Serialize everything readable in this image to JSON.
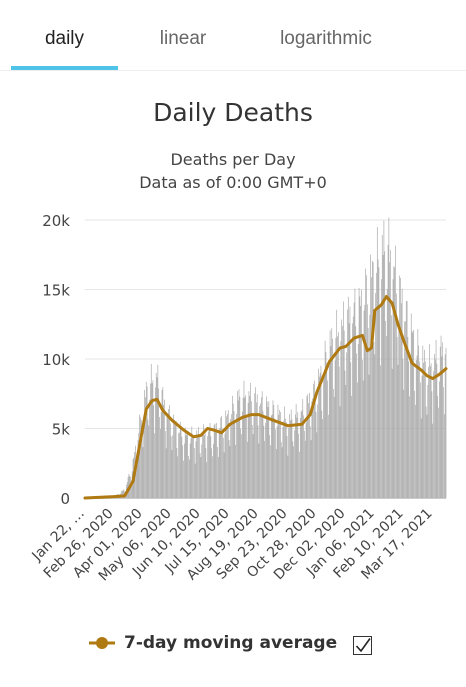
{
  "tabs": [
    "daily",
    "linear",
    "logarithmic"
  ],
  "active_tab": "daily",
  "chart_data": {
    "type": "bar",
    "title": "Daily Deaths",
    "subtitle_lines": [
      "Deaths per Day",
      "Data as of 0:00 GMT+0"
    ],
    "y_ticks": [
      "0",
      "5k",
      "10k",
      "15k",
      "20k"
    ],
    "ylim": [
      0,
      20000
    ],
    "x_tick_labels": [
      "Jan 22, …",
      "Feb 26, 2020",
      "Apr 01, 2020",
      "May 06, 2020",
      "Jun 10, 2020",
      "Jul 15, 2020",
      "Aug 19, 2020",
      "Sep 23, 2020",
      "Oct 28, 2020",
      "Dec 02, 2020",
      "Jan 06, 2021",
      "Feb 10, 2021",
      "Mar 17, 2021"
    ],
    "bar_color": "#a6a6a6",
    "line_color": "#b07a12",
    "daily_anchors": [
      [
        "Jan 22, 2020",
        20
      ],
      [
        "Feb 26, 2020",
        70
      ],
      [
        "Mar 10, 2020",
        600
      ],
      [
        "Mar 20, 2020",
        2400
      ],
      [
        "Mar 31, 2020",
        6000
      ],
      [
        "Apr 07, 2020",
        7800
      ],
      [
        "Apr 18, 2020",
        8300
      ],
      [
        "Apr 28, 2020",
        6200
      ],
      [
        "May 10, 2020",
        5000
      ],
      [
        "May 25, 2020",
        4200
      ],
      [
        "Jun 10, 2020",
        4400
      ],
      [
        "Jun 25, 2020",
        4600
      ],
      [
        "Jul 10, 2020",
        5400
      ],
      [
        "Jul 25, 2020",
        6800
      ],
      [
        "Aug 05, 2020",
        7100
      ],
      [
        "Aug 19, 2020",
        6700
      ],
      [
        "Sep 05, 2020",
        6000
      ],
      [
        "Sep 23, 2020",
        5300
      ],
      [
        "Oct 10, 2020",
        5900
      ],
      [
        "Oct 28, 2020",
        7600
      ],
      [
        "Nov 12, 2020",
        10400
      ],
      [
        "Dec 02, 2020",
        12200
      ],
      [
        "Dec 20, 2020",
        13200
      ],
      [
        "Jan 06, 2021",
        15800
      ],
      [
        "Jan 20, 2021",
        17400
      ],
      [
        "Jan 27, 2021",
        16200
      ],
      [
        "Feb 10, 2021",
        13000
      ],
      [
        "Feb 24, 2021",
        10500
      ],
      [
        "Mar 10, 2021",
        9000
      ],
      [
        "Mar 25, 2021",
        9800
      ],
      [
        "Apr 02, 2021",
        10500
      ]
    ],
    "series": [
      {
        "name": "7-day moving average",
        "points": [
          [
            "Jan 22, 2020",
            0
          ],
          [
            "Feb 26, 2020",
            100
          ],
          [
            "Mar 10, 2020",
            150
          ],
          [
            "Mar 20, 2020",
            1200
          ],
          [
            "Mar 28, 2020",
            3800
          ],
          [
            "Apr 05, 2020",
            6400
          ],
          [
            "Apr 12, 2020",
            7000
          ],
          [
            "Apr 18, 2020",
            7100
          ],
          [
            "Apr 25, 2020",
            6300
          ],
          [
            "May 06, 2020",
            5600
          ],
          [
            "May 20, 2020",
            4900
          ],
          [
            "Jun 01, 2020",
            4400
          ],
          [
            "Jun 10, 2020",
            4500
          ],
          [
            "Jun 18, 2020",
            5000
          ],
          [
            "Jun 25, 2020",
            4900
          ],
          [
            "Jul 05, 2020",
            4700
          ],
          [
            "Jul 15, 2020",
            5300
          ],
          [
            "Jul 30, 2020",
            5800
          ],
          [
            "Aug 10, 2020",
            6000
          ],
          [
            "Aug 19, 2020",
            6000
          ],
          [
            "Sep 05, 2020",
            5600
          ],
          [
            "Sep 23, 2020",
            5200
          ],
          [
            "Oct 10, 2020",
            5300
          ],
          [
            "Oct 20, 2020",
            6000
          ],
          [
            "Oct 28, 2020",
            7600
          ],
          [
            "Nov 12, 2020",
            9800
          ],
          [
            "Nov 25, 2020",
            10800
          ],
          [
            "Dec 02, 2020",
            10900
          ],
          [
            "Dec 12, 2020",
            11500
          ],
          [
            "Dec 22, 2020",
            11700
          ],
          [
            "Dec 28, 2020",
            10600
          ],
          [
            "Jan 02, 2021",
            10800
          ],
          [
            "Jan 06, 2021",
            13500
          ],
          [
            "Jan 14, 2021",
            13900
          ],
          [
            "Jan 20, 2021",
            14500
          ],
          [
            "Jan 27, 2021",
            14000
          ],
          [
            "Feb 03, 2021",
            12500
          ],
          [
            "Feb 10, 2021",
            11300
          ],
          [
            "Feb 20, 2021",
            9700
          ],
          [
            "Mar 03, 2021",
            9200
          ],
          [
            "Mar 10, 2021",
            8800
          ],
          [
            "Mar 17, 2021",
            8600
          ],
          [
            "Mar 25, 2021",
            8900
          ],
          [
            "Apr 02, 2021",
            9300
          ]
        ]
      }
    ],
    "legend": {
      "label": "7-day moving average",
      "checked": true,
      "placement": "bottom"
    }
  }
}
